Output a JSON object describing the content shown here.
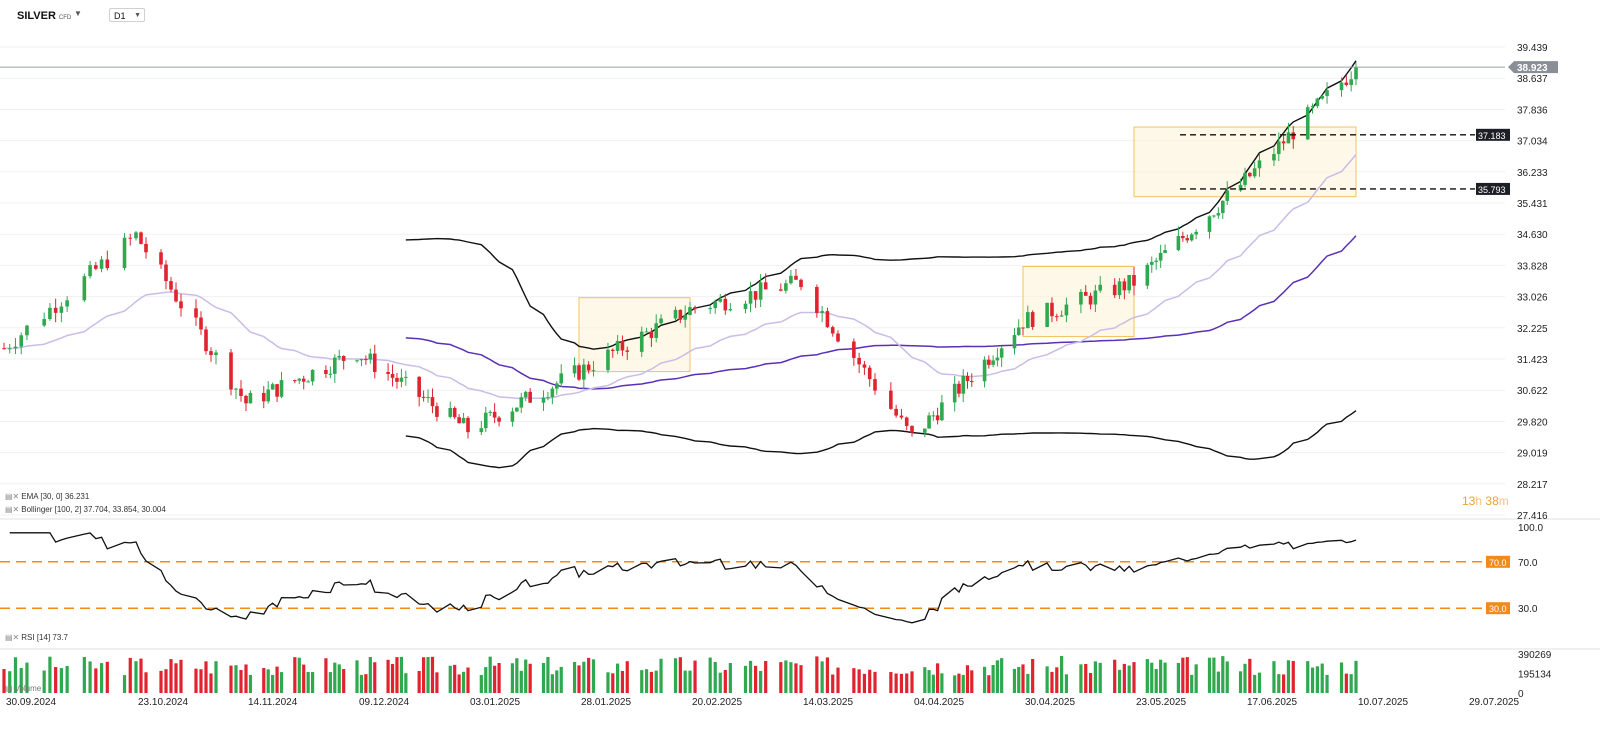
{
  "header": {
    "symbol": "SILVER",
    "symbol_type": "CFD",
    "timeframe": "D1"
  },
  "colors": {
    "up": "#2fa84f",
    "down": "#e0232e",
    "bands": "#111111",
    "ema": "#c9bde8",
    "sma100": "#5a30b8",
    "box_fill": "#fdf3d6",
    "box_stroke": "#f2c25f",
    "rsi_level": "#f08a1c",
    "price_tag": "#8a8e96"
  },
  "price_axis": {
    "labels": [
      "39.439",
      "38.637",
      "37.836",
      "37.034",
      "36.233",
      "35.431",
      "34.630",
      "33.828",
      "33.026",
      "32.225",
      "31.423",
      "30.622",
      "29.820",
      "29.019",
      "28.217",
      "27.416"
    ],
    "current_price": "38.923"
  },
  "levels": [
    {
      "label": "37.183",
      "value": 37.183
    },
    {
      "label": "35.793",
      "value": 35.793
    }
  ],
  "legend": {
    "ema": "EMA  [30,  0]  36.231",
    "bollinger": "Bollinger  [100,  2]  37.704,  33.854,  30.004",
    "rsi": "RSI  [14]  73.7",
    "volume": "Volume"
  },
  "rsi_axis": {
    "top": "100.0",
    "upper": "70.0",
    "mid": "70.0",
    "lower": "30.0",
    "bottom": "30.0"
  },
  "volume_axis": {
    "top": "390269",
    "mid": "195134",
    "bottom": "0"
  },
  "countdown": {
    "hours": "13",
    "h": "h",
    "minutes": "38",
    "m": "m"
  },
  "x_axis": [
    "30.09.2024",
    "23.10.2024",
    "14.11.2024",
    "09.12.2024",
    "03.01.2025",
    "28.01.2025",
    "20.02.2025",
    "14.03.2025",
    "04.04.2025",
    "30.04.2025",
    "23.05.2025",
    "17.06.2025",
    "10.07.2025",
    "29.07.2025"
  ],
  "chart_data": {
    "type": "candlestick",
    "y_range": [
      27.416,
      39.439
    ],
    "anchors": [
      [
        "30.09.2024",
        31.7
      ],
      [
        "23.10.2024",
        34.6
      ],
      [
        "14.11.2024",
        30.3
      ],
      [
        "09.12.2024",
        31.6
      ],
      [
        "03.01.2025",
        29.6
      ],
      [
        "28.01.2025",
        31.1
      ],
      [
        "20.02.2025",
        32.7
      ],
      [
        "14.03.2025",
        33.4
      ],
      [
        "04.04.2025",
        29.4
      ],
      [
        "30.04.2025",
        32.4
      ],
      [
        "23.05.2025",
        33.4
      ],
      [
        "17.06.2025",
        36.0
      ],
      [
        "10.07.2025",
        38.92
      ]
    ],
    "current_price": 38.923,
    "resistance": 37.183,
    "support": 35.793,
    "ema_30_last": 36.231,
    "bollinger": {
      "upper": 37.704,
      "middle": 33.854,
      "lower": 30.004
    },
    "rsi": {
      "last": 73.7,
      "levels": [
        70,
        30
      ],
      "range": [
        0,
        100
      ]
    },
    "volume": {
      "max": 390269,
      "mid": 195134
    }
  }
}
